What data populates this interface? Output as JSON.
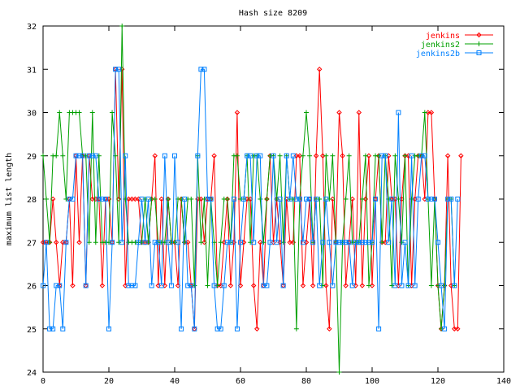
{
  "chart_data": {
    "type": "line",
    "title": "Hash size 8209",
    "xlabel": "",
    "ylabel": "maximum list length",
    "xlim": [
      0,
      140
    ],
    "ylim": [
      24,
      32
    ],
    "xticks": [
      0,
      20,
      40,
      60,
      80,
      100,
      120,
      140
    ],
    "yticks": [
      24,
      25,
      26,
      27,
      28,
      29,
      30,
      31,
      32
    ],
    "grid": false,
    "legend_position": "top-right",
    "series": [
      {
        "name": "jenkins",
        "color": "#ff0000",
        "marker": "diamond",
        "values": [
          27,
          27,
          27,
          28,
          27,
          26,
          27,
          27,
          28,
          26,
          29,
          27,
          29,
          26,
          29,
          28,
          28,
          28,
          26,
          28,
          28,
          27,
          31,
          28,
          31,
          26,
          28,
          28,
          28,
          28,
          27,
          27,
          27,
          28,
          29,
          26,
          28,
          26,
          28,
          27,
          27,
          26,
          28,
          27,
          27,
          26,
          25,
          28,
          28,
          27,
          28,
          28,
          29,
          26,
          26,
          27,
          28,
          26,
          27,
          30,
          26,
          27,
          28,
          28,
          26,
          25,
          27,
          26,
          28,
          29,
          27,
          28,
          27,
          26,
          28,
          27,
          27,
          29,
          29,
          26,
          27,
          28,
          26,
          29,
          31,
          29,
          26,
          25,
          28,
          27,
          30,
          29,
          26,
          27,
          28,
          26,
          30,
          26,
          28,
          29,
          26,
          28,
          29,
          27,
          27,
          29,
          28,
          28,
          26,
          28,
          29,
          29,
          26,
          28,
          29,
          29,
          28,
          30,
          30,
          28,
          26,
          25,
          26,
          29,
          26,
          25,
          25,
          29
        ]
      },
      {
        "name": "jenkins2",
        "color": "#00a000",
        "marker": "plus",
        "values": [
          29,
          28,
          27,
          29,
          29,
          30,
          29,
          28,
          30,
          30,
          30,
          30,
          29,
          29,
          27,
          30,
          27,
          29,
          27,
          27,
          27,
          30,
          29,
          27,
          32,
          28,
          27,
          27,
          27,
          27,
          27,
          28,
          27,
          28,
          28,
          27,
          27,
          27,
          28,
          27,
          27,
          28,
          28,
          27,
          28,
          28,
          26,
          29,
          27,
          28,
          26,
          28,
          27,
          26,
          27,
          28,
          28,
          27,
          29,
          29,
          28,
          28,
          29,
          27,
          29,
          29,
          28,
          27,
          28,
          29,
          29,
          28,
          29,
          27,
          29,
          28,
          28,
          25,
          28,
          29,
          30,
          29,
          27,
          28,
          28,
          26,
          29,
          28,
          29,
          27,
          24,
          27,
          28,
          29,
          27,
          27,
          27,
          28,
          29,
          26,
          27,
          29,
          29,
          27,
          29,
          28,
          26,
          29,
          28,
          27,
          29,
          26,
          28,
          29,
          29,
          29,
          30,
          28,
          26,
          28,
          26,
          25,
          26,
          28,
          28,
          26
        ]
      },
      {
        "name": "jenkins2b",
        "color": "#0080ff",
        "marker": "square",
        "values": [
          26,
          27,
          25,
          25,
          26,
          26,
          25,
          27,
          28,
          28,
          29,
          29,
          29,
          26,
          29,
          29,
          29,
          28,
          28,
          28,
          25,
          27,
          31,
          31,
          27,
          29,
          26,
          26,
          26,
          27,
          28,
          27,
          28,
          26,
          27,
          27,
          26,
          29,
          27,
          26,
          29,
          27,
          25,
          28,
          26,
          26,
          25,
          29,
          31,
          31,
          28,
          28,
          26,
          25,
          25,
          26,
          27,
          27,
          28,
          25,
          27,
          28,
          29,
          29,
          27,
          29,
          29,
          26,
          26,
          27,
          29,
          27,
          28,
          26,
          29,
          28,
          29,
          28,
          28,
          27,
          28,
          28,
          27,
          28,
          26,
          27,
          28,
          27,
          26,
          27,
          27,
          27,
          27,
          27,
          26,
          27,
          27,
          27,
          27,
          27,
          27,
          28,
          25,
          29,
          29,
          27,
          28,
          26,
          30,
          26,
          27,
          26,
          29,
          26,
          28,
          29,
          29,
          28,
          28,
          28,
          27,
          26,
          25,
          28,
          28,
          26,
          28
        ]
      }
    ]
  }
}
